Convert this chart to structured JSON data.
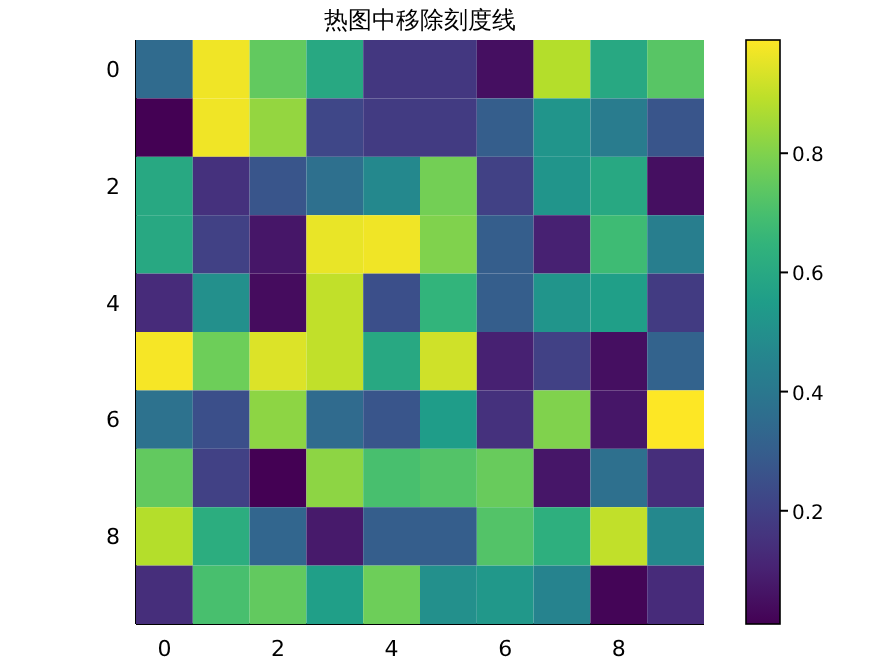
{
  "chart_data": {
    "type": "heatmap",
    "title": "热图中移除刻度线",
    "categories": [
      "0",
      null,
      "2",
      null,
      "4",
      null,
      "6",
      null,
      "8",
      null
    ],
    "y_categories": [
      "0",
      null,
      "2",
      null,
      "4",
      null,
      "6",
      null,
      "8",
      null
    ],
    "cells": [
      [
        0.35,
        0.97,
        0.75,
        0.6,
        0.17,
        0.17,
        0.05,
        0.88,
        0.6,
        0.73
      ],
      [
        0.01,
        0.97,
        0.83,
        0.22,
        0.18,
        0.18,
        0.3,
        0.52,
        0.42,
        0.27
      ],
      [
        0.6,
        0.15,
        0.27,
        0.37,
        0.47,
        0.78,
        0.2,
        0.52,
        0.6,
        0.05
      ],
      [
        0.6,
        0.2,
        0.07,
        0.96,
        0.97,
        0.8,
        0.3,
        0.1,
        0.68,
        0.43
      ],
      [
        0.13,
        0.5,
        0.04,
        0.9,
        0.25,
        0.65,
        0.3,
        0.52,
        0.56,
        0.18
      ],
      [
        0.98,
        0.77,
        0.94,
        0.9,
        0.6,
        0.92,
        0.1,
        0.2,
        0.05,
        0.32
      ],
      [
        0.38,
        0.25,
        0.82,
        0.35,
        0.27,
        0.55,
        0.15,
        0.8,
        0.07,
        0.99
      ],
      [
        0.75,
        0.2,
        0.01,
        0.82,
        0.7,
        0.72,
        0.76,
        0.07,
        0.37,
        0.14
      ],
      [
        0.88,
        0.62,
        0.33,
        0.08,
        0.3,
        0.3,
        0.72,
        0.63,
        0.9,
        0.47
      ],
      [
        0.14,
        0.7,
        0.75,
        0.56,
        0.77,
        0.5,
        0.53,
        0.45,
        0.02,
        0.13
      ]
    ],
    "clim": [
      0.01,
      0.99
    ],
    "cticks": [
      0.2,
      0.4,
      0.6,
      0.8
    ]
  }
}
